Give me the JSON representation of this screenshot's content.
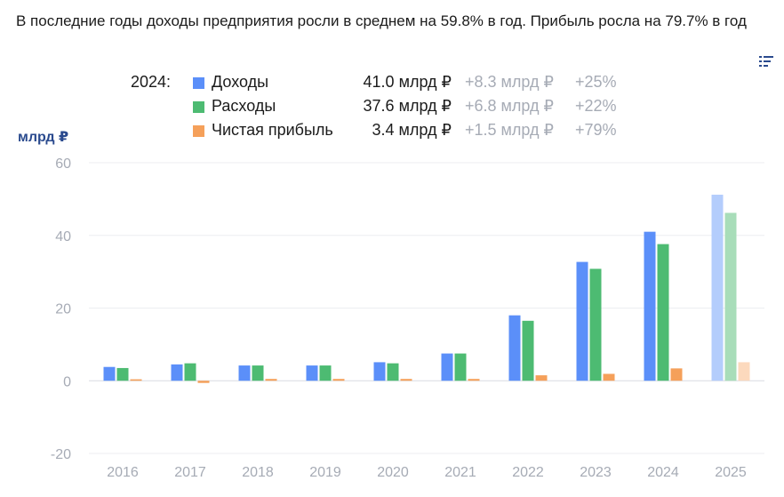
{
  "headline": "В последние годы доходы предприятия росли в среднем на 59.8% в год. Прибыль росла на 79.7% в год",
  "menu_icon": "filter-list-icon",
  "legend": {
    "year": "2024:",
    "rows": [
      {
        "name": "Доходы",
        "value": "41.0 млрд ₽",
        "delta": "+8.3 млрд ₽",
        "pct": "+25%",
        "color": "#5b8ff9"
      },
      {
        "name": "Расходы",
        "value": "37.6 млрд ₽",
        "delta": "+6.8 млрд ₽",
        "pct": "+22%",
        "color": "#4dbb72"
      },
      {
        "name": "Чистая прибыль",
        "value": "3.4 млрд ₽",
        "delta": "+1.5 млрд ₽",
        "pct": "+79%",
        "color": "#f5a05a"
      }
    ]
  },
  "chart_data": {
    "type": "bar",
    "ylabel": "млрд ₽",
    "ylim": [
      -20,
      60
    ],
    "yticks": [
      60,
      40,
      20,
      0,
      -20
    ],
    "categories": [
      "2016",
      "2017",
      "2018",
      "2019",
      "2020",
      "2021",
      "2022",
      "2023",
      "2024",
      "2025"
    ],
    "series": [
      {
        "name": "Доходы",
        "color": "#5b8ff9",
        "forecast_color": "#b4cdfc",
        "values": [
          3.8,
          4.5,
          4.2,
          4.2,
          5.1,
          7.5,
          18.0,
          32.7,
          41.0,
          51.2
        ]
      },
      {
        "name": "Расходы",
        "color": "#4dbb72",
        "forecast_color": "#a8ddb9",
        "values": [
          3.5,
          4.8,
          4.2,
          4.2,
          4.8,
          7.5,
          16.5,
          30.8,
          37.6,
          46.2
        ]
      },
      {
        "name": "Чистая прибыль",
        "color": "#f5a05a",
        "forecast_color": "#fcd9bd",
        "values": [
          0.4,
          -0.6,
          0.5,
          0.5,
          0.5,
          0.5,
          1.5,
          1.9,
          3.4,
          5.1
        ]
      }
    ],
    "forecast_categories": [
      "2025"
    ],
    "grid": true
  }
}
